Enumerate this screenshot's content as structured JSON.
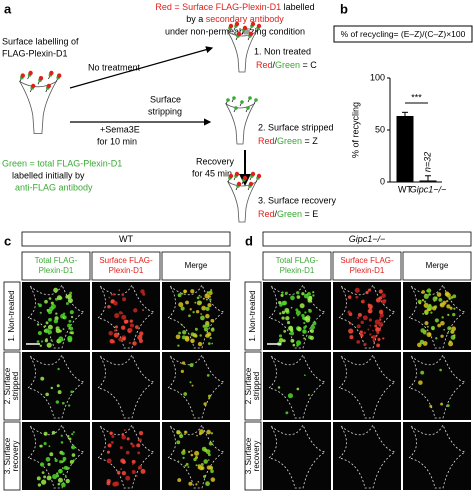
{
  "panel_labels": [
    "a",
    "b",
    "c",
    "d"
  ],
  "panel_a": {
    "red_legend": [
      [
        "Red = Surface FLAG-Plexin-D1",
        " labelled"
      ],
      [
        "by a ",
        "secondary antibody"
      ],
      [
        "under non-permeabilizing condition"
      ]
    ],
    "start": [
      "Surface labelling of",
      "FLAG-Plexin-D1"
    ],
    "no_treatment": "No treatment",
    "sema": [
      "+Sema3E",
      "for 10 min"
    ],
    "stripping": [
      "Surface",
      "stripping"
    ],
    "recovery": [
      "Recovery",
      "for 45 min"
    ],
    "green_legend": [
      "Green = total FLAG-Plexin-D1",
      "labelled initially by",
      "anti-FLAG antibody"
    ],
    "outcomes": [
      {
        "name": "1. Non treated",
        "ratio": [
          "Red",
          "/",
          "Green",
          " = C"
        ]
      },
      {
        "name": "2. Surface stripped",
        "ratio": [
          "Red",
          "/",
          "Green",
          " = Z"
        ]
      },
      {
        "name": "3. Surface recovery",
        "ratio": [
          "Red",
          "/",
          "Green",
          " = E"
        ]
      }
    ]
  },
  "chart_data": {
    "type": "bar",
    "title": "% of recycling= (E–Z)/(C–Z)×100",
    "y_label": "% of recycling",
    "categories": [
      "WT",
      "Gipc1−/−"
    ],
    "values": [
      63,
      1
    ],
    "errors": [
      4,
      5
    ],
    "colors": [
      "#000000",
      "#ffffff"
    ],
    "bar_labels": [
      "n=33",
      "n=32"
    ],
    "significance": "***",
    "ylim": [
      0,
      100
    ],
    "yticks": [
      0,
      50,
      100
    ]
  },
  "panel_c": {
    "header": "WT",
    "columns": [
      [
        "Total FLAG-",
        "Plexin-D1"
      ],
      [
        "Surface FLAG-",
        "Plexin-D1"
      ],
      [
        "Merge"
      ]
    ],
    "rows": [
      [
        "1. Non-treated"
      ],
      [
        "2. Surface",
        "stripped"
      ],
      [
        "3. Surface",
        "recovery"
      ]
    ]
  },
  "panel_d": {
    "header": "Gipc1−/−",
    "columns": [
      [
        "Total FLAG-",
        "Plexin-D1"
      ],
      [
        "Surface FLAG-",
        "Plexin-D1"
      ],
      [
        "Merge"
      ]
    ],
    "rows": [
      [
        "1. Non-treated"
      ],
      [
        "2. Surface",
        "stripped"
      ],
      [
        "3. Surface",
        "recovery"
      ]
    ]
  }
}
